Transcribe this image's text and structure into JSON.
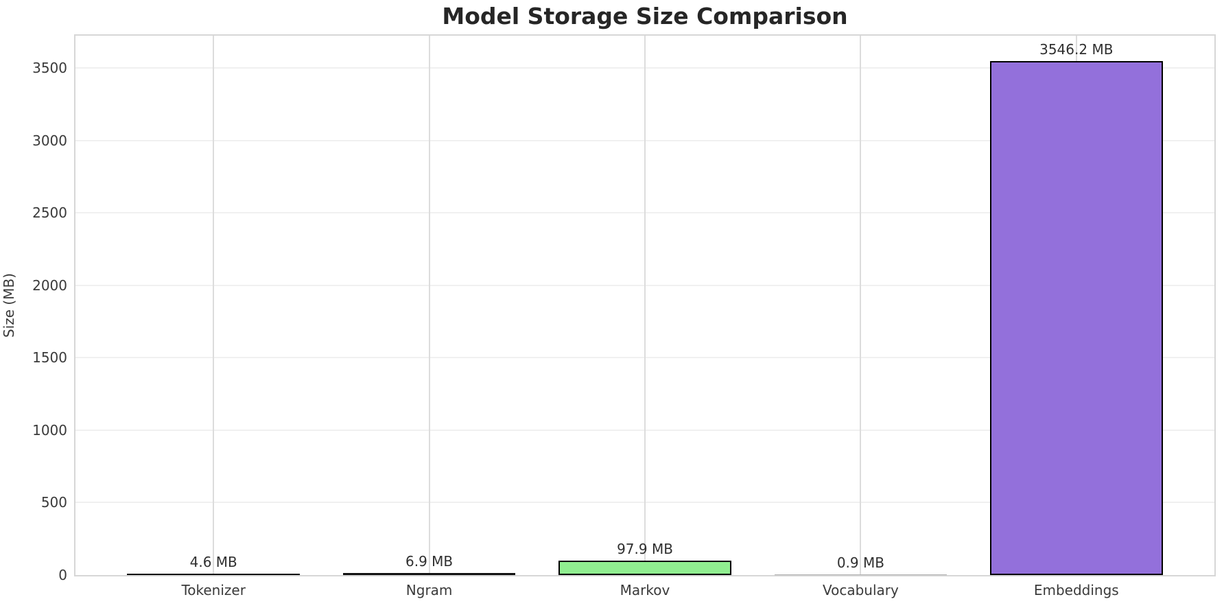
{
  "chart_data": {
    "type": "bar",
    "title": "Model Storage Size Comparison",
    "xlabel": "",
    "ylabel": "Size (MB)",
    "categories": [
      "Tokenizer",
      "Ngram",
      "Markov",
      "Vocabulary",
      "Embeddings"
    ],
    "values": [
      4.6,
      6.9,
      97.9,
      0.9,
      3546.2
    ],
    "bar_value_labels": [
      "4.6 MB",
      "6.9 MB",
      "97.9 MB",
      "0.9 MB",
      "3546.2 MB"
    ],
    "bar_colors": [
      "#87CEEB",
      "#F08080",
      "#90EE90",
      "#FFD700",
      "#9370DB"
    ],
    "bar_edge_color": "#000000",
    "yticks": [
      0,
      500,
      1000,
      1500,
      2000,
      2500,
      3000,
      3500
    ],
    "ylim": [
      0,
      3723.5
    ],
    "grid": true,
    "legend_position": "none"
  }
}
